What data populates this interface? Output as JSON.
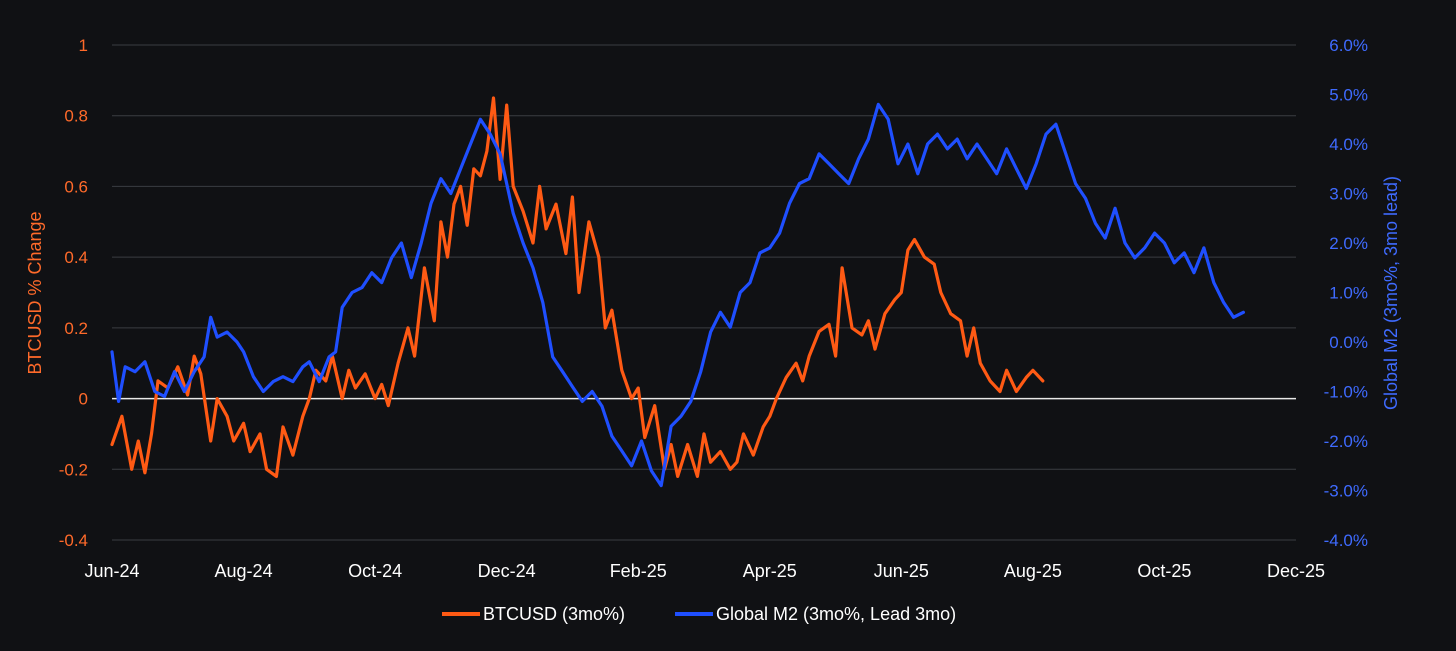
{
  "colors": {
    "background": "#101114",
    "btc": "#ff5a14",
    "m2": "#1f4fff",
    "grid": "#3a3d42",
    "zero_line": "#e8e8e8",
    "left_tick": "#ff6a2a",
    "right_tick": "#3f6bff"
  },
  "chart_data": {
    "type": "line",
    "title": "",
    "xlabel": "",
    "ylabel": "BTCUSD % Change",
    "y2label": "Global M2 (3mo%, 3mo lead)",
    "x_ticks": [
      "Jun-24",
      "Aug-24",
      "Oct-24",
      "Dec-24",
      "Feb-25",
      "Apr-25",
      "Jun-25",
      "Aug-25",
      "Oct-25",
      "Dec-25"
    ],
    "x_range_months": [
      0,
      18
    ],
    "ylim": [
      -0.4,
      1.0
    ],
    "y_ticks": [
      "1",
      "0.8",
      "0.6",
      "0.4",
      "0.2",
      "0",
      "-0.2",
      "-0.4"
    ],
    "y_tick_values": [
      1,
      0.8,
      0.6,
      0.4,
      0.2,
      0,
      -0.2,
      -0.4
    ],
    "y2lim": [
      -4.0,
      6.0
    ],
    "y2_ticks": [
      "6.0%",
      "5.0%",
      "4.0%",
      "3.0%",
      "2.0%",
      "1.0%",
      "0.0%",
      "-1.0%",
      "-2.0%",
      "-3.0%",
      "-4.0%"
    ],
    "y2_tick_values": [
      6,
      5,
      4,
      3,
      2,
      1,
      0,
      -1,
      -2,
      -3,
      -4
    ],
    "legend_position": "bottom-center",
    "series": [
      {
        "name": "BTCUSD (3mo%)",
        "axis": "left",
        "x_months": [
          0,
          0.15,
          0.3,
          0.4,
          0.5,
          0.6,
          0.7,
          0.85,
          1.0,
          1.15,
          1.25,
          1.35,
          1.5,
          1.6,
          1.75,
          1.85,
          2.0,
          2.1,
          2.25,
          2.35,
          2.5,
          2.6,
          2.75,
          2.9,
          3.0,
          3.1,
          3.25,
          3.35,
          3.5,
          3.6,
          3.7,
          3.85,
          4.0,
          4.1,
          4.2,
          4.35,
          4.5,
          4.6,
          4.75,
          4.9,
          5.0,
          5.1,
          5.2,
          5.3,
          5.4,
          5.5,
          5.6,
          5.7,
          5.8,
          5.9,
          6.0,
          6.1,
          6.25,
          6.4,
          6.5,
          6.6,
          6.75,
          6.9,
          7.0,
          7.1,
          7.25,
          7.4,
          7.5,
          7.6,
          7.75,
          7.9,
          8.0,
          8.1,
          8.25,
          8.4,
          8.5,
          8.6,
          8.75,
          8.9,
          9.0,
          9.1,
          9.25,
          9.4,
          9.5,
          9.6,
          9.75,
          9.9,
          10.0,
          10.1,
          10.25,
          10.4,
          10.5,
          10.6,
          10.75,
          10.9,
          11.0,
          11.1,
          11.25,
          11.4,
          11.5,
          11.6,
          11.75,
          11.9,
          12.0,
          12.1,
          12.2,
          12.35,
          12.5,
          12.6,
          12.75,
          12.9,
          13.0,
          13.1,
          13.2,
          13.35,
          13.5,
          13.6,
          13.75,
          13.9,
          14.0,
          14.15
        ],
        "values": [
          -0.13,
          -0.05,
          -0.2,
          -0.12,
          -0.21,
          -0.1,
          0.05,
          0.03,
          0.09,
          0.01,
          0.12,
          0.07,
          -0.12,
          0.0,
          -0.05,
          -0.12,
          -0.07,
          -0.15,
          -0.1,
          -0.2,
          -0.22,
          -0.08,
          -0.16,
          -0.05,
          0.0,
          0.08,
          0.05,
          0.12,
          0.0,
          0.08,
          0.03,
          0.07,
          0.0,
          0.04,
          -0.02,
          0.1,
          0.2,
          0.12,
          0.37,
          0.22,
          0.5,
          0.4,
          0.55,
          0.6,
          0.49,
          0.65,
          0.63,
          0.7,
          0.85,
          0.62,
          0.83,
          0.6,
          0.53,
          0.44,
          0.6,
          0.48,
          0.55,
          0.41,
          0.57,
          0.3,
          0.5,
          0.4,
          0.2,
          0.25,
          0.08,
          0.0,
          0.03,
          -0.11,
          -0.02,
          -0.2,
          -0.13,
          -0.22,
          -0.13,
          -0.22,
          -0.1,
          -0.18,
          -0.15,
          -0.2,
          -0.18,
          -0.1,
          -0.16,
          -0.08,
          -0.05,
          0.0,
          0.06,
          0.1,
          0.05,
          0.12,
          0.19,
          0.21,
          0.12,
          0.37,
          0.2,
          0.18,
          0.22,
          0.14,
          0.24,
          0.28,
          0.3,
          0.42,
          0.45,
          0.4,
          0.38,
          0.3,
          0.24,
          0.22,
          0.12,
          0.2,
          0.1,
          0.05,
          0.02,
          0.08,
          0.02,
          0.06,
          0.08,
          0.05
        ]
      },
      {
        "name": "Global M2 (3mo%, Lead 3mo)",
        "axis": "right",
        "x_months": [
          0,
          0.1,
          0.2,
          0.35,
          0.5,
          0.65,
          0.8,
          0.95,
          1.1,
          1.25,
          1.4,
          1.5,
          1.6,
          1.75,
          1.9,
          2.0,
          2.15,
          2.3,
          2.45,
          2.6,
          2.75,
          2.9,
          3.0,
          3.15,
          3.3,
          3.4,
          3.5,
          3.65,
          3.8,
          3.95,
          4.1,
          4.25,
          4.4,
          4.55,
          4.7,
          4.85,
          5.0,
          5.15,
          5.3,
          5.45,
          5.6,
          5.75,
          5.9,
          6.0,
          6.1,
          6.25,
          6.4,
          6.55,
          6.7,
          6.85,
          7.0,
          7.15,
          7.3,
          7.45,
          7.6,
          7.75,
          7.9,
          8.05,
          8.2,
          8.35,
          8.5,
          8.65,
          8.8,
          8.95,
          9.1,
          9.25,
          9.4,
          9.55,
          9.7,
          9.85,
          10.0,
          10.15,
          10.3,
          10.45,
          10.6,
          10.75,
          10.9,
          11.05,
          11.2,
          11.35,
          11.5,
          11.65,
          11.8,
          11.95,
          12.1,
          12.25,
          12.4,
          12.55,
          12.7,
          12.85,
          13.0,
          13.15,
          13.3,
          13.45,
          13.6,
          13.75,
          13.9,
          14.05,
          14.2,
          14.35,
          14.5,
          14.65,
          14.8,
          14.95,
          15.1,
          15.25,
          15.4,
          15.55,
          15.7,
          15.85,
          16.0,
          16.15,
          16.3,
          16.45,
          16.6,
          16.75,
          16.9,
          17.05,
          17.2
        ],
        "values": [
          -0.2,
          -1.2,
          -0.5,
          -0.6,
          -0.4,
          -1.0,
          -1.1,
          -0.6,
          -1.0,
          -0.6,
          -0.3,
          0.5,
          0.1,
          0.2,
          0.0,
          -0.2,
          -0.7,
          -1.0,
          -0.8,
          -0.7,
          -0.8,
          -0.5,
          -0.4,
          -0.8,
          -0.3,
          -0.2,
          0.7,
          1.0,
          1.1,
          1.4,
          1.2,
          1.7,
          2.0,
          1.3,
          2.0,
          2.8,
          3.3,
          3.0,
          3.5,
          4.0,
          4.5,
          4.2,
          3.8,
          3.2,
          2.6,
          2.0,
          1.5,
          0.8,
          -0.3,
          -0.6,
          -0.9,
          -1.2,
          -1.0,
          -1.3,
          -1.9,
          -2.2,
          -2.5,
          -2.0,
          -2.6,
          -2.9,
          -1.7,
          -1.5,
          -1.2,
          -0.6,
          0.2,
          0.6,
          0.3,
          1.0,
          1.2,
          1.8,
          1.9,
          2.2,
          2.8,
          3.2,
          3.3,
          3.8,
          3.6,
          3.4,
          3.2,
          3.7,
          4.1,
          4.8,
          4.5,
          3.6,
          4.0,
          3.4,
          4.0,
          4.2,
          3.9,
          4.1,
          3.7,
          4.0,
          3.7,
          3.4,
          3.9,
          3.5,
          3.1,
          3.6,
          4.2,
          4.4,
          3.8,
          3.2,
          2.9,
          2.4,
          2.1,
          2.7,
          2.0,
          1.7,
          1.9,
          2.2,
          2.0,
          1.6,
          1.8,
          1.4,
          1.9,
          1.2,
          0.8,
          0.5,
          0.6
        ]
      }
    ]
  }
}
